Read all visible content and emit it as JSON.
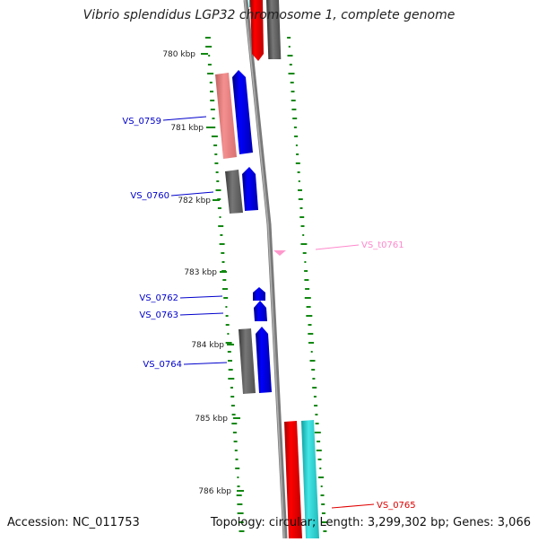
{
  "title": "Vibrio splendidus LGP32 chromosome 1, complete genome",
  "footer": {
    "accession": "Accession: NC_011753",
    "summary": "Topology: circular; Length: 3,299,302 bp; Genes: 3,066"
  },
  "ticks": [
    {
      "label": "780 kbp"
    },
    {
      "label": "781 kbp"
    },
    {
      "label": "782 kbp"
    },
    {
      "label": "783 kbp"
    },
    {
      "label": "784 kbp"
    },
    {
      "label": "785 kbp"
    },
    {
      "label": "786 kbp"
    }
  ],
  "genes": [
    {
      "label": "VS_0759",
      "color": "#0000cc"
    },
    {
      "label": "VS_0760",
      "color": "#0000cc"
    },
    {
      "label": "VS_t0761",
      "color": "#ff88cc"
    },
    {
      "label": "VS_0762",
      "color": "#0000cc"
    },
    {
      "label": "VS_0763",
      "color": "#0000cc"
    },
    {
      "label": "VS_0764",
      "color": "#0000cc"
    },
    {
      "label": "VS_0765",
      "color": "#e00000"
    }
  ],
  "colors": {
    "cds_forward": "#0000ee",
    "cds_reverse_red": "#ee0000",
    "cds_pink": "#f08080",
    "cds_grey": "#606060",
    "cds_cyan": "#22cccc",
    "trna": "#ff99cc",
    "backbone": "#808080",
    "gc_marks": "#118811"
  }
}
